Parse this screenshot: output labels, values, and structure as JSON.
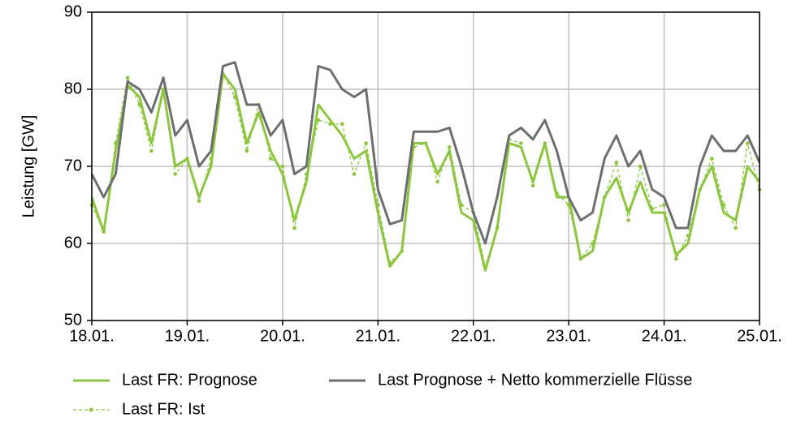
{
  "chart_data": {
    "type": "line",
    "ylabel": "Leistung [GW]",
    "x": [
      0,
      3,
      6,
      9,
      12,
      15,
      18,
      21,
      24,
      27,
      30,
      33,
      36,
      39,
      42,
      45,
      48,
      51,
      54,
      57,
      60,
      63,
      66,
      69,
      72,
      75,
      78,
      81,
      84,
      87,
      90,
      93,
      96,
      99,
      102,
      105,
      108,
      111,
      114,
      117,
      120,
      123,
      126,
      129,
      132,
      135,
      138,
      141,
      144,
      147,
      150,
      153,
      156,
      159,
      162,
      165,
      168
    ],
    "xlim": [
      0,
      168
    ],
    "xticks": [
      {
        "value": 0,
        "label": "18.01."
      },
      {
        "value": 24,
        "label": "19.01."
      },
      {
        "value": 48,
        "label": "20.01."
      },
      {
        "value": 72,
        "label": "21.01."
      },
      {
        "value": 96,
        "label": "22.01."
      },
      {
        "value": 120,
        "label": "23.01."
      },
      {
        "value": 144,
        "label": "24.01."
      },
      {
        "value": 168,
        "label": "25.01."
      }
    ],
    "ylim": [
      50,
      90
    ],
    "yticks": [
      50,
      60,
      70,
      80,
      90
    ],
    "grid": true,
    "series": [
      {
        "name": "Last FR: Prognose",
        "color": "#8cc63e",
        "dashed": false,
        "markers": false,
        "values": [
          66,
          61.5,
          72,
          80.5,
          79,
          73,
          80,
          70,
          71,
          66,
          70,
          82,
          80,
          73,
          77,
          72,
          69,
          63,
          68,
          78,
          76,
          74,
          71,
          72,
          64,
          57,
          59,
          73,
          73,
          69,
          72,
          64,
          63,
          56.5,
          62,
          73,
          72.5,
          68,
          73,
          66,
          66,
          58,
          59,
          66,
          68.5,
          64,
          68,
          64,
          64,
          58.5,
          60,
          67,
          70,
          64,
          63,
          70,
          68
        ]
      },
      {
        "name": "Last FR: Ist",
        "color": "#8cc63e",
        "dashed": true,
        "markers": true,
        "values": [
          65,
          61.5,
          73,
          81.5,
          78,
          72,
          80,
          69,
          71,
          65.5,
          71,
          82,
          79,
          72,
          78,
          71,
          70,
          62,
          69,
          76,
          75.5,
          75.5,
          69,
          73,
          65,
          57.5,
          59,
          72.5,
          73,
          68,
          72.5,
          65,
          64,
          57,
          62,
          73.5,
          73,
          67.5,
          73,
          66.5,
          65,
          58,
          60,
          66,
          70.5,
          63,
          70,
          64.5,
          65,
          58,
          61,
          67,
          71,
          65,
          62,
          73,
          67
        ]
      },
      {
        "name": "Last Prognose + Netto kommerzielle Flüsse",
        "color": "#6d6e70",
        "dashed": false,
        "markers": false,
        "values": [
          69,
          66,
          69,
          81,
          80,
          77,
          81.5,
          74,
          76,
          70,
          72,
          83,
          83.5,
          78,
          78,
          74,
          76,
          69,
          70,
          83,
          82.5,
          80,
          79,
          80,
          67,
          62.5,
          63,
          74.5,
          74.5,
          74.5,
          75,
          70,
          64,
          60,
          66,
          74,
          75,
          73.5,
          76,
          72,
          66,
          63,
          64,
          71,
          74,
          70,
          72,
          67,
          66,
          62,
          62,
          70,
          74,
          72,
          72,
          74,
          70.5
        ]
      }
    ]
  }
}
